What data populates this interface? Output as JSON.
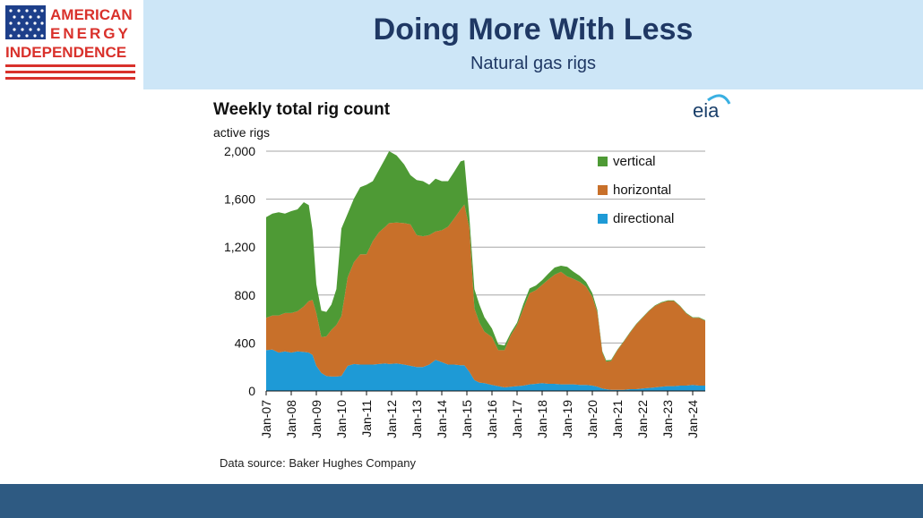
{
  "logo": {
    "line1": "AMERICAN",
    "line2": "ENERGY",
    "line3": "INDEPENDENCE"
  },
  "header": {
    "title": "Doing More With Less",
    "subtitle": "Natural gas rigs"
  },
  "colors": {
    "header_bg": "#cde6f7",
    "title": "#1f3864",
    "footer": "#2e5a82",
    "vertical": "#4e9a35",
    "horizontal": "#c8702a",
    "directional": "#1e9ad6",
    "logo_red": "#d9312b",
    "logo_blue": "#1d3f8a"
  },
  "chart_data": {
    "type": "area",
    "stacked": true,
    "title": "Weekly total rig count",
    "ylabel": "active rigs",
    "ylim": [
      0,
      2000
    ],
    "yticks": [
      "0",
      "400",
      "800",
      "1,200",
      "1,600",
      "2,000"
    ],
    "xticks": [
      "Jan-07",
      "Jan-08",
      "Jan-09",
      "Jan-10",
      "Jan-11",
      "Jan-12",
      "Jan-13",
      "Jan-14",
      "Jan-15",
      "Jan-16",
      "Jan-17",
      "Jan-18",
      "Jan-19",
      "Jan-20",
      "Jan-21",
      "Jan-22",
      "Jan-23",
      "Jan-24"
    ],
    "xlim": [
      2007.0,
      2024.5
    ],
    "legend_position": "top-right",
    "source": "Data source: Baker Hughes Company",
    "brand": "eia",
    "x": [
      2007.0,
      2007.25,
      2007.5,
      2007.75,
      2008.0,
      2008.25,
      2008.5,
      2008.7,
      2008.85,
      2009.0,
      2009.2,
      2009.4,
      2009.6,
      2009.8,
      2010.0,
      2010.25,
      2010.5,
      2010.75,
      2011.0,
      2011.25,
      2011.5,
      2011.75,
      2011.9,
      2012.2,
      2012.5,
      2012.75,
      2013.0,
      2013.25,
      2013.5,
      2013.75,
      2014.0,
      2014.25,
      2014.5,
      2014.75,
      2014.9,
      2015.1,
      2015.3,
      2015.5,
      2015.7,
      2016.0,
      2016.25,
      2016.5,
      2016.75,
      2017.0,
      2017.25,
      2017.5,
      2017.75,
      2018.0,
      2018.25,
      2018.5,
      2018.75,
      2019.0,
      2019.25,
      2019.5,
      2019.75,
      2020.0,
      2020.2,
      2020.4,
      2020.55,
      2020.75,
      2021.0,
      2021.25,
      2021.5,
      2021.75,
      2022.0,
      2022.25,
      2022.5,
      2022.75,
      2023.0,
      2023.25,
      2023.5,
      2023.75,
      2024.0,
      2024.25,
      2024.5
    ],
    "series": [
      {
        "name": "directional",
        "values": [
          340,
          345,
          320,
          330,
          320,
          330,
          325,
          320,
          300,
          210,
          150,
          125,
          120,
          120,
          125,
          210,
          225,
          220,
          220,
          220,
          225,
          230,
          225,
          230,
          220,
          210,
          200,
          200,
          220,
          260,
          240,
          220,
          220,
          215,
          215,
          160,
          90,
          70,
          65,
          50,
          40,
          30,
          35,
          40,
          45,
          55,
          60,
          65,
          60,
          60,
          55,
          55,
          55,
          50,
          50,
          45,
          35,
          20,
          15,
          10,
          10,
          10,
          15,
          15,
          20,
          25,
          30,
          35,
          40,
          40,
          45,
          45,
          50,
          45,
          45
        ]
      },
      {
        "name": "horizontal",
        "values": [
          270,
          285,
          310,
          320,
          330,
          335,
          380,
          430,
          460,
          440,
          300,
          330,
          390,
          430,
          500,
          740,
          850,
          920,
          920,
          1030,
          1100,
          1140,
          1175,
          1175,
          1180,
          1180,
          1100,
          1090,
          1080,
          1070,
          1100,
          1150,
          1220,
          1300,
          1340,
          1200,
          600,
          500,
          430,
          400,
          300,
          310,
          430,
          510,
          640,
          760,
          780,
          820,
          870,
          910,
          940,
          900,
          880,
          860,
          820,
          740,
          620,
          300,
          230,
          240,
          330,
          400,
          470,
          540,
          590,
          640,
          680,
          700,
          710,
          710,
          660,
          600,
          560,
          565,
          540
        ]
      },
      {
        "name": "vertical",
        "values": [
          840,
          850,
          860,
          830,
          850,
          850,
          870,
          800,
          580,
          240,
          220,
          205,
          210,
          300,
          730,
          530,
          530,
          560,
          580,
          500,
          520,
          570,
          600,
          560,
          490,
          410,
          460,
          460,
          420,
          440,
          410,
          380,
          390,
          400,
          370,
          90,
          160,
          150,
          120,
          70,
          50,
          40,
          20,
          20,
          40,
          40,
          40,
          40,
          50,
          60,
          50,
          80,
          60,
          50,
          40,
          30,
          20,
          10,
          10,
          10,
          5,
          5,
          5,
          5,
          5,
          5,
          5,
          5,
          5,
          5,
          5,
          5,
          5,
          5,
          5
        ]
      }
    ]
  }
}
